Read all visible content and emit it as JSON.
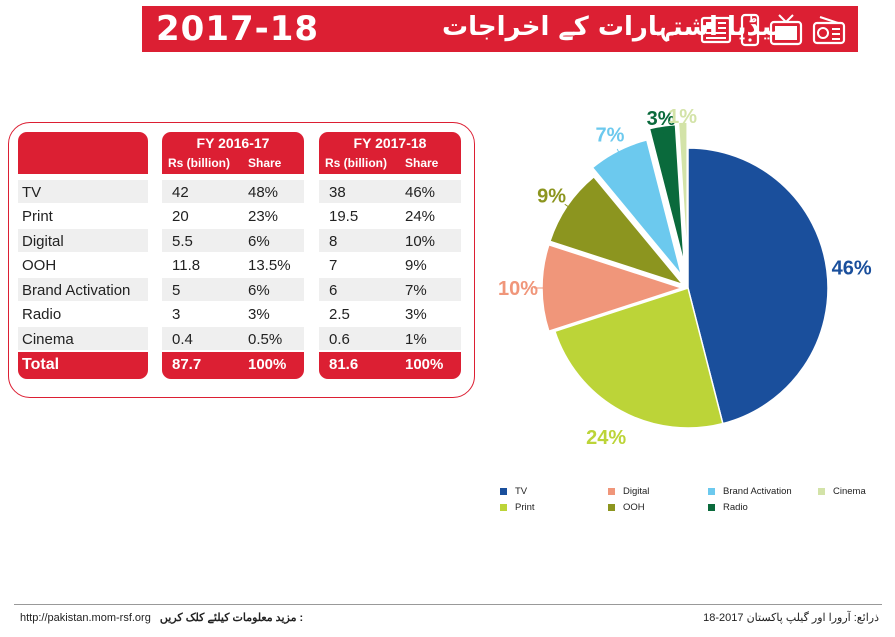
{
  "header": {
    "year": "2017-18",
    "urdu_title": "میڈیا اشتہارات کے اخراجات",
    "icons": [
      "newspaper-icon",
      "tablet-icon",
      "tv-icon",
      "radio-icon"
    ]
  },
  "table": {
    "fy1_title": "FY 2016-17",
    "fy2_title": "FY 2017-18",
    "col_rs": "Rs (billion)",
    "col_share": "Share",
    "rows": [
      {
        "label": "TV",
        "rs1": "42",
        "sh1": "48%",
        "rs2": "38",
        "sh2": "46%"
      },
      {
        "label": "Print",
        "rs1": "20",
        "sh1": "23%",
        "rs2": "19.5",
        "sh2": "24%"
      },
      {
        "label": "Digital",
        "rs1": "5.5",
        "sh1": "6%",
        "rs2": "8",
        "sh2": "10%"
      },
      {
        "label": "OOH",
        "rs1": "11.8",
        "sh1": "13.5%",
        "rs2": "7",
        "sh2": "9%"
      },
      {
        "label": "Brand Activation",
        "rs1": "5",
        "sh1": "6%",
        "rs2": "6",
        "sh2": "7%"
      },
      {
        "label": "Radio",
        "rs1": "3",
        "sh1": "3%",
        "rs2": "2.5",
        "sh2": "3%"
      },
      {
        "label": "Cinema",
        "rs1": "0.4",
        "sh1": "0.5%",
        "rs2": "0.6",
        "sh2": "1%"
      }
    ],
    "total": {
      "label": "Total",
      "rs1": "87.7",
      "sh1": "100%",
      "rs2": "81.6",
      "sh2": "100%"
    }
  },
  "chart_data": {
    "type": "pie",
    "slices": [
      {
        "name": "TV",
        "value": 46,
        "label": "46%",
        "color": "#1a4f9c"
      },
      {
        "name": "Print",
        "value": 24,
        "label": "24%",
        "color": "#bcd438"
      },
      {
        "name": "Digital",
        "value": 10,
        "label": "10%",
        "color": "#f0967a"
      },
      {
        "name": "OOH",
        "value": 9,
        "label": "9%",
        "color": "#8c951f"
      },
      {
        "name": "Brand Activation",
        "value": 7,
        "label": "7%",
        "color": "#6cc9ee"
      },
      {
        "name": "Radio",
        "value": 3,
        "label": "3%",
        "color": "#0a6a3c"
      },
      {
        "name": "Cinema",
        "value": 1,
        "label": "1%",
        "color": "#d3e3a8"
      }
    ],
    "legend_order": [
      "TV",
      "Digital",
      "Brand Activation",
      "Cinema",
      "Print",
      "OOH",
      "Radio"
    ],
    "legend_placement": "bottom"
  },
  "footer": {
    "url": "http://pakistan.mom-rsf.org",
    "url_note": "مزید معلومات کیلئے کلک کریں :",
    "source": "ذرائع: آرورا اور گیلپ پاکستان 2017-18"
  }
}
